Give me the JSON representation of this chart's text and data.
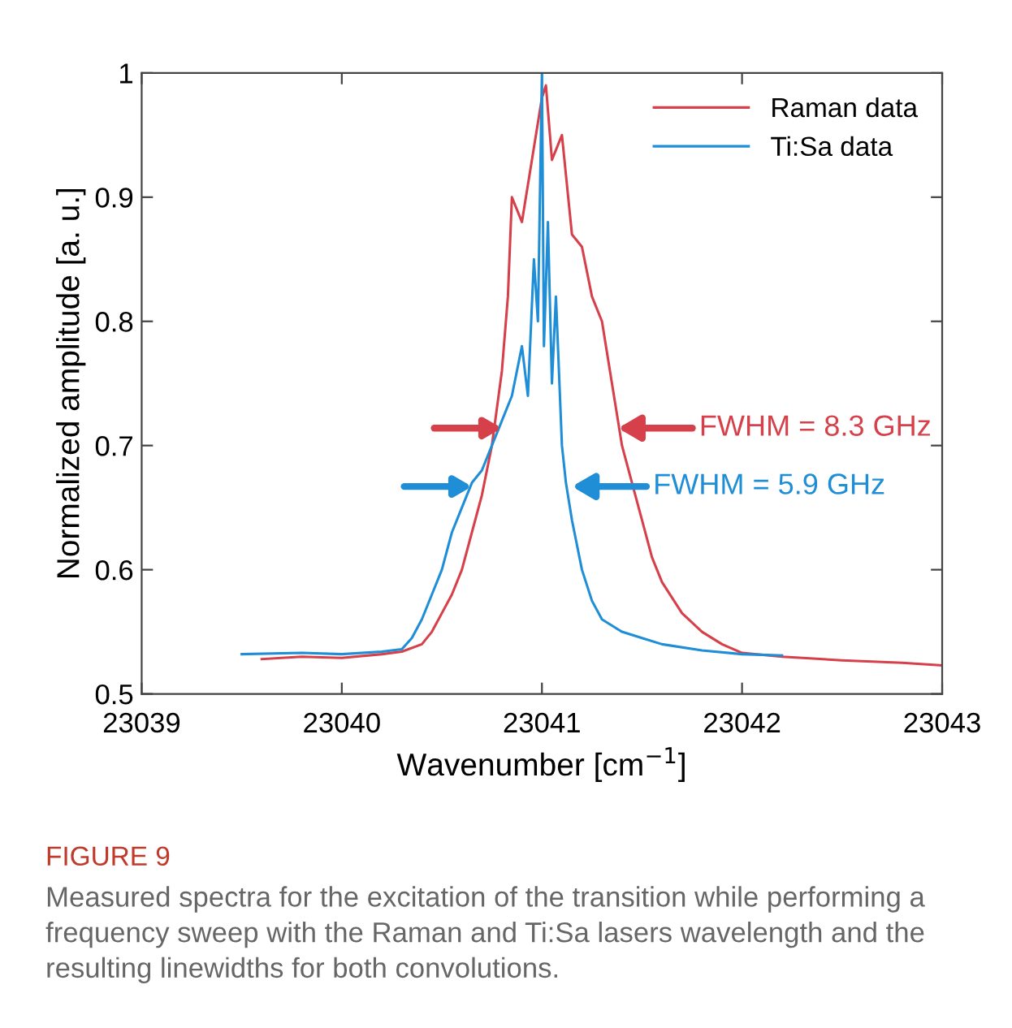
{
  "chart_data": {
    "type": "line",
    "xlabel": "Wavenumber [cm$^{−1}$]",
    "ylabel": "Normalized amplitude [a. u.]",
    "xlim": [
      23039,
      23043
    ],
    "xticks": [
      23039,
      23040,
      23041,
      23042,
      23043
    ],
    "ylim": [
      0.5,
      1
    ],
    "yticks": [
      0.5,
      0.6,
      0.7,
      0.8,
      0.9,
      1
    ],
    "grid": false,
    "legend": "top right",
    "marker": "none",
    "line_style": "solid",
    "series": [
      {
        "name": "Raman data",
        "color": "#d6404a",
        "x": [
          23039.6,
          23039.8,
          23040.0,
          23040.2,
          23040.3,
          23040.4,
          23040.45,
          23040.5,
          23040.55,
          23040.6,
          23040.65,
          23040.7,
          23040.75,
          23040.8,
          23040.83,
          23040.85,
          23040.9,
          23040.95,
          23041.0,
          23041.02,
          23041.05,
          23041.1,
          23041.15,
          23041.2,
          23041.25,
          23041.3,
          23041.35,
          23041.4,
          23041.45,
          23041.5,
          23041.55,
          23041.6,
          23041.7,
          23041.8,
          23041.9,
          23042.0,
          23042.2,
          23042.5,
          23042.8,
          23043.0
        ],
        "values": [
          0.528,
          0.53,
          0.529,
          0.532,
          0.534,
          0.54,
          0.55,
          0.565,
          0.58,
          0.6,
          0.63,
          0.66,
          0.7,
          0.76,
          0.82,
          0.9,
          0.88,
          0.93,
          0.98,
          0.99,
          0.93,
          0.95,
          0.87,
          0.86,
          0.82,
          0.8,
          0.75,
          0.7,
          0.67,
          0.64,
          0.61,
          0.59,
          0.565,
          0.55,
          0.54,
          0.533,
          0.53,
          0.527,
          0.525,
          0.523
        ]
      },
      {
        "name": "Ti:Sa data",
        "color": "#1f8ed6",
        "x": [
          23039.5,
          23039.8,
          23040.0,
          23040.2,
          23040.3,
          23040.35,
          23040.4,
          23040.45,
          23040.5,
          23040.55,
          23040.6,
          23040.65,
          23040.7,
          23040.75,
          23040.8,
          23040.85,
          23040.9,
          23040.93,
          23040.96,
          23040.98,
          23041.0,
          23041.01,
          23041.03,
          23041.05,
          23041.07,
          23041.1,
          23041.12,
          23041.15,
          23041.2,
          23041.25,
          23041.3,
          23041.4,
          23041.5,
          23041.6,
          23041.8,
          23042.0,
          23042.2
        ],
        "values": [
          0.532,
          0.533,
          0.532,
          0.534,
          0.536,
          0.545,
          0.56,
          0.58,
          0.6,
          0.63,
          0.65,
          0.67,
          0.68,
          0.7,
          0.72,
          0.74,
          0.78,
          0.74,
          0.85,
          0.8,
          1.0,
          0.78,
          0.88,
          0.75,
          0.82,
          0.7,
          0.67,
          0.64,
          0.6,
          0.575,
          0.56,
          0.55,
          0.545,
          0.54,
          0.535,
          0.532,
          0.531
        ]
      }
    ],
    "annotations": [
      {
        "text": "FWHM = 8.3 GHz",
        "x": 23041.38,
        "y": 0.714
      },
      {
        "text": "FWHM = 5.9 GHz",
        "x": 23041.15,
        "y": 0.667
      },
      "FIGURE 9",
      "Measured spectra for the excitation of the transition while performing a frequency sweep with the Raman and Ti:Sa lasers wavelength and the resulting linewidths for both convolutions."
    ]
  }
}
